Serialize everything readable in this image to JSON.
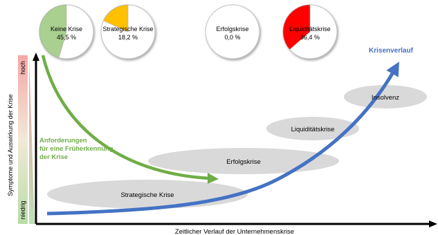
{
  "pies": [
    {
      "label": "Keine Krise",
      "value": "45,5 %",
      "share": 0.455,
      "fill": "#a9d08e"
    },
    {
      "label": "Strategische Krise",
      "value": "18,2 %",
      "share": 0.182,
      "fill": "#ffc000"
    },
    {
      "label": "Erfolgskrise",
      "value": "0,0 %",
      "share": 0.0,
      "fill": "#ffffff"
    },
    {
      "label": "Liquiditätskrise",
      "value": "36,4 %",
      "share": 0.364,
      "fill": "#ff0000"
    }
  ],
  "stages": [
    "Strategische Krise",
    "Erfolgskrise",
    "Liquiditätskrise",
    "Insolvenz"
  ],
  "curve_label": "Krisenverlauf",
  "green_arrow_label": [
    "Anforderungen",
    "für eine Früherkennung",
    "der Krise"
  ],
  "y_axis": {
    "title": "Symptome und Auswirkung der Krise",
    "high": "hoch",
    "low": "niedrig"
  },
  "x_axis": {
    "title": "Zeitlicher Verlauf der Unternehmenskrise"
  },
  "colors": {
    "curve": "#4472c4",
    "green": "#70ad47",
    "ellipse": "#d9d9d9",
    "axis": "#000000"
  }
}
